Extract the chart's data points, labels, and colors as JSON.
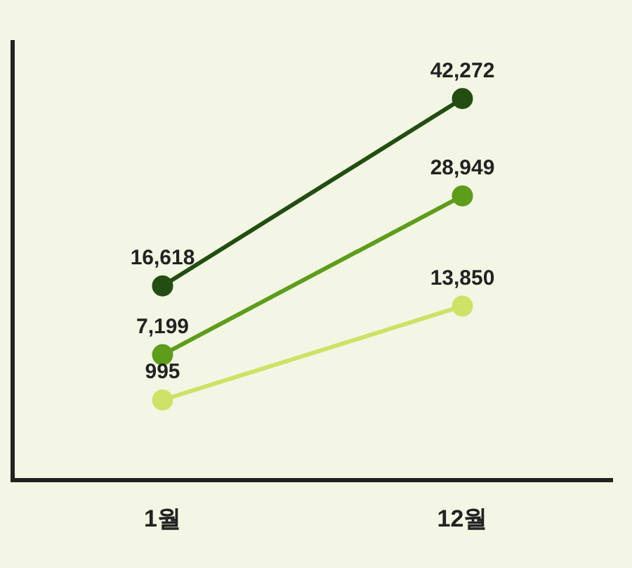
{
  "chart_data": {
    "type": "line",
    "categories": [
      "1월",
      "12월"
    ],
    "series": [
      {
        "color": "#234d12",
        "values": [
          16618,
          42272
        ],
        "value_labels": [
          "16,618",
          "42,272"
        ]
      },
      {
        "color": "#5e9c1c",
        "values": [
          7199,
          28949
        ],
        "value_labels": [
          "7,199",
          "28,949"
        ]
      },
      {
        "color": "#cde267",
        "values": [
          995,
          13850
        ],
        "value_labels": [
          "995",
          "13,850"
        ]
      }
    ],
    "tick_labels": "x",
    "grid": false,
    "legend": false,
    "marker": "circle"
  }
}
